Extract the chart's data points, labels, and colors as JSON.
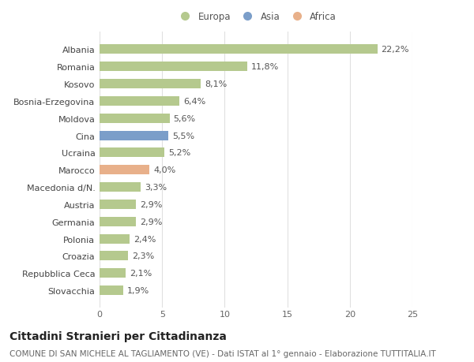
{
  "categories": [
    "Albania",
    "Romania",
    "Kosovo",
    "Bosnia-Erzegovina",
    "Moldova",
    "Cina",
    "Ucraina",
    "Marocco",
    "Macedonia d/N.",
    "Austria",
    "Germania",
    "Polonia",
    "Croazia",
    "Repubblica Ceca",
    "Slovacchia"
  ],
  "values": [
    22.2,
    11.8,
    8.1,
    6.4,
    5.6,
    5.5,
    5.2,
    4.0,
    3.3,
    2.9,
    2.9,
    2.4,
    2.3,
    2.1,
    1.9
  ],
  "labels": [
    "22,2%",
    "11,8%",
    "8,1%",
    "6,4%",
    "5,6%",
    "5,5%",
    "5,2%",
    "4,0%",
    "3,3%",
    "2,9%",
    "2,9%",
    "2,4%",
    "2,3%",
    "2,1%",
    "1,9%"
  ],
  "bar_colors": [
    "#b5c98e",
    "#b5c98e",
    "#b5c98e",
    "#b5c98e",
    "#b5c98e",
    "#7b9ec9",
    "#b5c98e",
    "#e8b08a",
    "#b5c98e",
    "#b5c98e",
    "#b5c98e",
    "#b5c98e",
    "#b5c98e",
    "#b5c98e",
    "#b5c98e"
  ],
  "legend_labels": [
    "Europa",
    "Asia",
    "Africa"
  ],
  "legend_colors": [
    "#b5c98e",
    "#7b9ec9",
    "#e8b08a"
  ],
  "title": "Cittadini Stranieri per Cittadinanza",
  "subtitle": "COMUNE DI SAN MICHELE AL TAGLIAMENTO (VE) - Dati ISTAT al 1° gennaio - Elaborazione TUTTITALIA.IT",
  "xlim": [
    0,
    25
  ],
  "xticks": [
    0,
    5,
    10,
    15,
    20,
    25
  ],
  "background_color": "#ffffff",
  "grid_color": "#e0e0e0",
  "bar_height": 0.55,
  "title_fontsize": 10,
  "subtitle_fontsize": 7.5,
  "tick_fontsize": 8,
  "label_fontsize": 8,
  "legend_fontsize": 8.5
}
